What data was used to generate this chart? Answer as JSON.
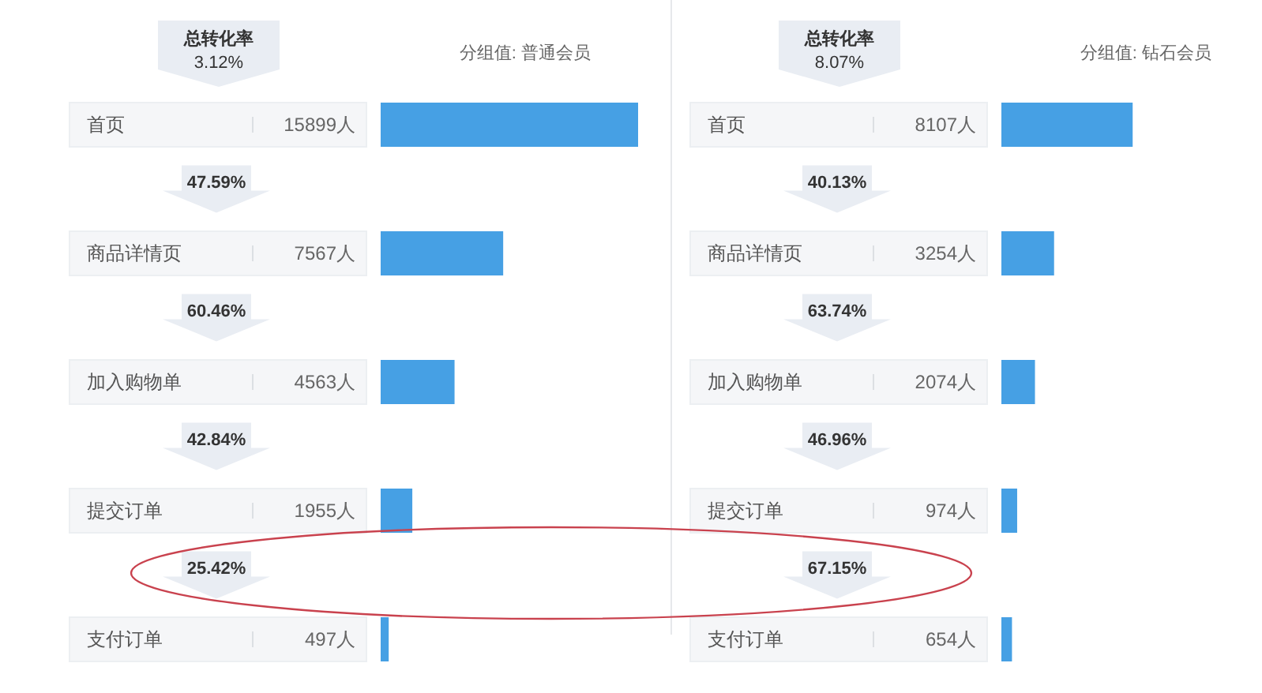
{
  "chart_data": [
    {
      "type": "bar",
      "orientation": "horizontal",
      "title": "分组值: 普通会员",
      "categories": [
        "首页",
        "商品详情页",
        "加入购物单",
        "提交订单",
        "支付订单"
      ],
      "values": [
        15899,
        7567,
        4563,
        1955,
        497
      ],
      "value_labels": [
        "15899人",
        "7567人",
        "4563人",
        "1955人",
        "497人"
      ],
      "color": "#46a0e4",
      "annotations": [
        "总转化率",
        "3.12%",
        "47.59%",
        "60.46%",
        "42.84%",
        "25.42%"
      ]
    },
    {
      "type": "bar",
      "orientation": "horizontal",
      "title": "分组值: 钻石会员",
      "categories": [
        "首页",
        "商品详情页",
        "加入购物单",
        "提交订单",
        "支付订单"
      ],
      "values": [
        8107,
        3254,
        2074,
        974,
        654
      ],
      "value_labels": [
        "8107人",
        "3254人",
        "2074人",
        "974人",
        "654人"
      ],
      "color": "#46a0e4",
      "annotations": [
        "总转化率",
        "8.07%",
        "40.13%",
        "63.74%",
        "46.96%",
        "67.15%"
      ]
    }
  ]
}
